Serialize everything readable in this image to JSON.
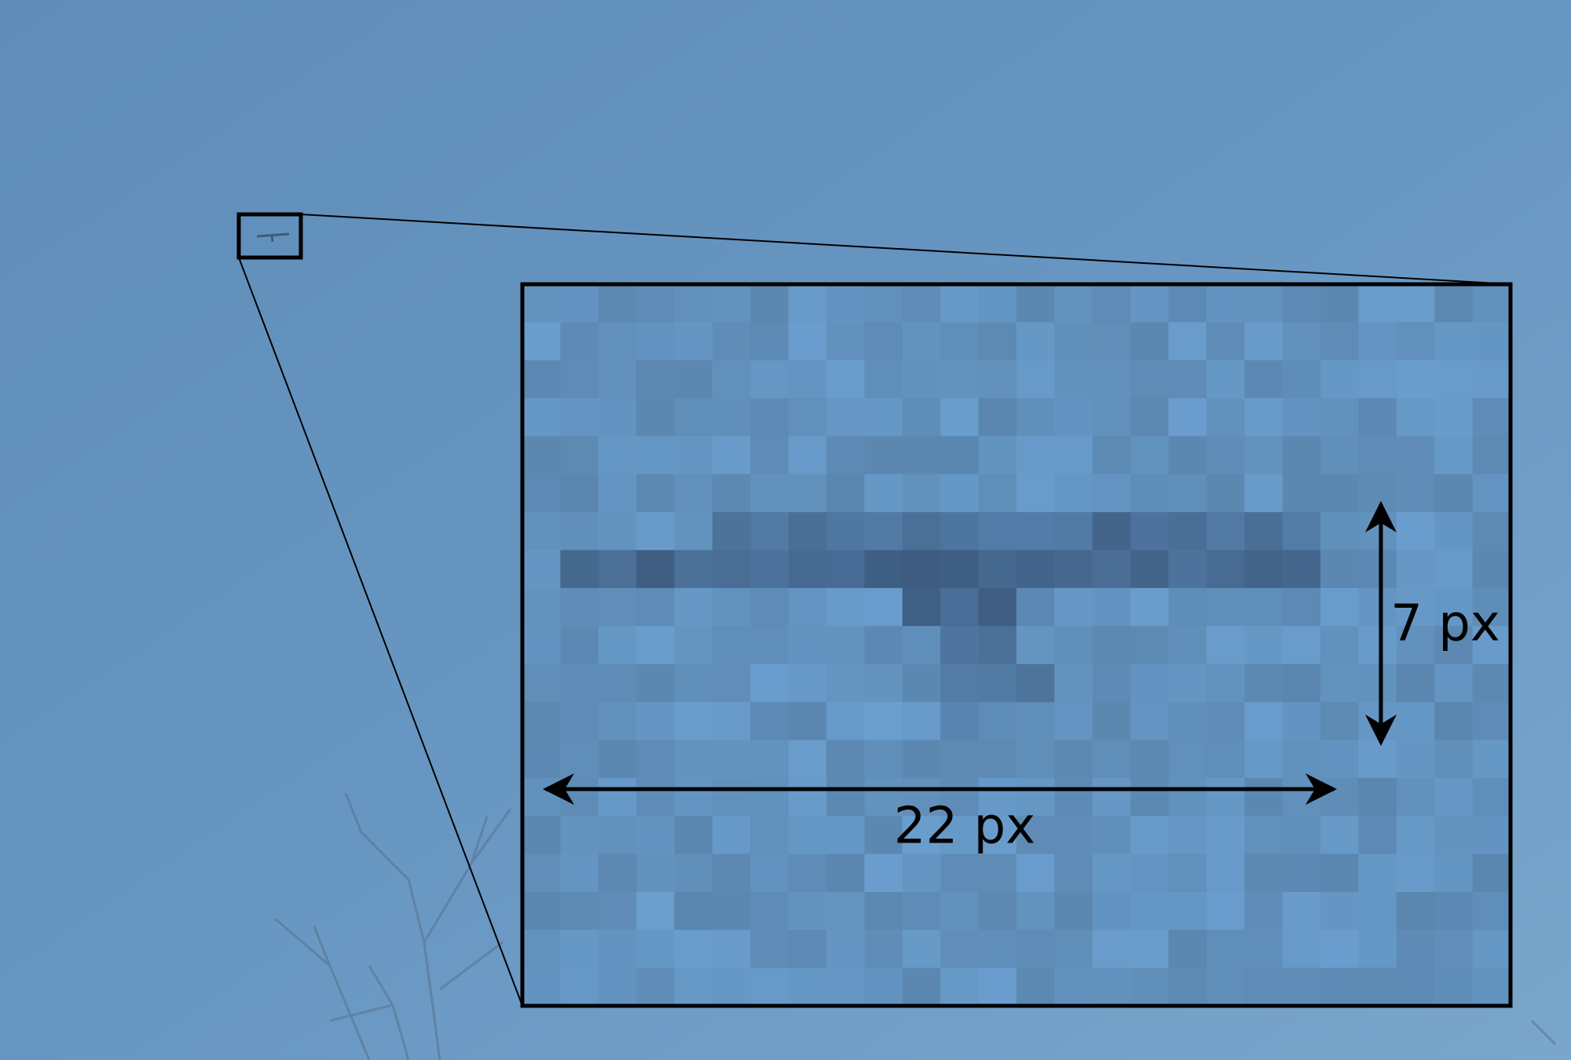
{
  "annotations": {
    "width_label": "22 px",
    "height_label": "7 px"
  }
}
